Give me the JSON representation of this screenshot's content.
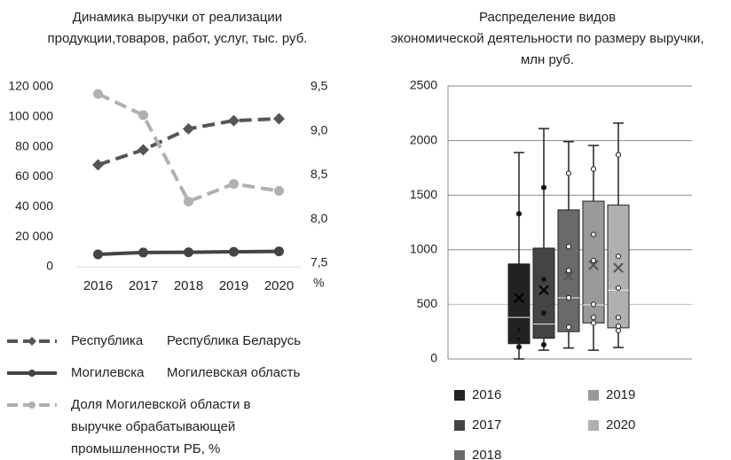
{
  "chart_data": [
    {
      "type": "line",
      "title": [
        "Динамика выручки от реализации",
        "продукции,товаров, работ, услуг, тыс. руб."
      ],
      "categories": [
        "2016",
        "2017",
        "2018",
        "2019",
        "2020"
      ],
      "ylim": [
        0,
        120000
      ],
      "yticks": [
        {
          "value": 0,
          "label": "0"
        },
        {
          "value": 20000,
          "label": "20 000"
        },
        {
          "value": 40000,
          "label": "40 000"
        },
        {
          "value": 60000,
          "label": "60 000"
        },
        {
          "value": 80000,
          "label": "80 000"
        },
        {
          "value": 100000,
          "label": "100 000"
        },
        {
          "value": 120000,
          "label": "120 000"
        }
      ],
      "y2lim": [
        7.5,
        9.5
      ],
      "y2ticks": [
        {
          "value": 7.5,
          "label": "7,5"
        },
        {
          "value": 8,
          "label": "8,0"
        },
        {
          "value": 8.5,
          "label": "8,5"
        },
        {
          "value": 9,
          "label": "9,0"
        },
        {
          "value": 9.5,
          "label": "9,5"
        }
      ],
      "y2label": "%",
      "legend": "bottom",
      "series": [
        {
          "name": "Республика Беларусь",
          "short_name": "Республика",
          "color": "#555555",
          "dashed": true,
          "marker": "diamond",
          "values": [
            68000,
            78000,
            92000,
            97500,
            98700
          ]
        },
        {
          "name": "Могилевская область",
          "short_name": "Могилевска",
          "color": "#444444",
          "dashed": false,
          "marker": "circle",
          "values": [
            8300,
            9500,
            9700,
            10000,
            10300
          ]
        },
        {
          "name": "Доля Могилевской области в выручке обрабатывающей промышленности РБ, %",
          "color": "#b0b0b0",
          "dashed": true,
          "marker": "circle",
          "axis": "y2",
          "values": [
            9.42,
            9.18,
            8.2,
            8.4,
            8.32
          ]
        }
      ]
    },
    {
      "type": "box",
      "title": [
        "Распределение видов",
        "экономической деятельности по размеру выручки,",
        "млн руб."
      ],
      "ylim": [
        0,
        2500
      ],
      "yticks": [
        0,
        500,
        1000,
        1500,
        2000,
        2500
      ],
      "grid": true,
      "legend": "bottom",
      "series": [
        {
          "name": "2016",
          "color": "#222222",
          "min": 0,
          "q1": 140,
          "median": 380,
          "q3": 870,
          "max": 1890,
          "mean": 560,
          "points": [
            1330,
            270,
            180,
            110
          ]
        },
        {
          "name": "2017",
          "color": "#444444",
          "min": 80,
          "q1": 190,
          "median": 320,
          "q3": 1015,
          "max": 2110,
          "mean": 630,
          "points": [
            1570,
            730,
            420,
            130
          ]
        },
        {
          "name": "2018",
          "color": "#6a6a6a",
          "min": 100,
          "q1": 250,
          "median": 560,
          "q3": 1365,
          "max": 1990,
          "mean": 760,
          "points": [
            1700,
            1030,
            810,
            560,
            290
          ]
        },
        {
          "name": "2019",
          "color": "#999999",
          "min": 80,
          "q1": 330,
          "median": 495,
          "q3": 1445,
          "max": 1955,
          "mean": 860,
          "points": [
            1740,
            1140,
            900,
            500,
            380,
            330
          ]
        },
        {
          "name": "2020",
          "color": "#b0b0b0",
          "min": 105,
          "q1": 285,
          "median": 630,
          "q3": 1410,
          "max": 2160,
          "mean": 835,
          "points": [
            1870,
            940,
            650,
            380,
            300,
            260
          ]
        }
      ]
    }
  ]
}
